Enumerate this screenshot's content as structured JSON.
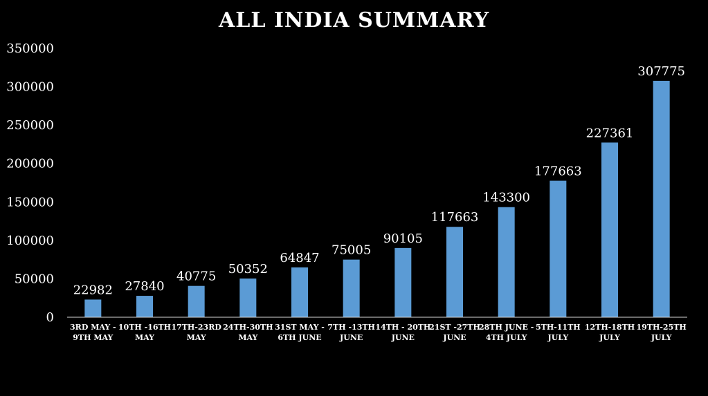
{
  "chart_data": {
    "type": "bar",
    "title": "ALL INDIA  SUMMARY",
    "categories": [
      [
        "3RD MAY -",
        "9TH MAY"
      ],
      [
        "10TH -16TH",
        "MAY"
      ],
      [
        "17TH-23RD",
        "MAY"
      ],
      [
        "24TH-30TH",
        "MAY"
      ],
      [
        "31ST MAY -",
        "6TH JUNE"
      ],
      [
        "7TH -13TH",
        "JUNE"
      ],
      [
        "14TH - 20TH",
        "JUNE"
      ],
      [
        "21ST -27TH",
        "JUNE"
      ],
      [
        "28TH JUNE -",
        "4TH JULY"
      ],
      [
        "5TH-11TH",
        "JULY"
      ],
      [
        "12TH-18TH",
        "JULY"
      ],
      [
        "19TH-25TH",
        "JULY"
      ]
    ],
    "values": [
      22982,
      27840,
      40775,
      50352,
      64847,
      75005,
      90105,
      117663,
      143300,
      177663,
      227361,
      307775
    ],
    "ylim": [
      0,
      350000
    ],
    "yticks": [
      0,
      50000,
      100000,
      150000,
      200000,
      250000,
      300000,
      350000
    ],
    "bar_color": "#5b9bd5",
    "background": "#000000",
    "text_color": "#ffffff",
    "grid": false,
    "data_labels": true
  }
}
